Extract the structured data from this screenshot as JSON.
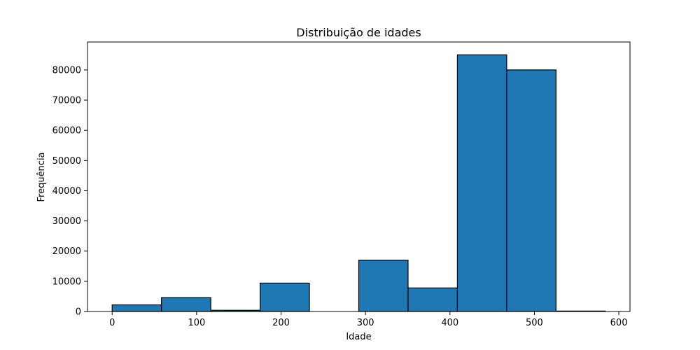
{
  "chart_data": {
    "type": "bar",
    "subtype": "histogram",
    "title": "Distribuição de idades",
    "xlabel": "Idade",
    "ylabel": "Frequência",
    "bin_edges": [
      0,
      58.4,
      116.8,
      175.2,
      233.6,
      292,
      350.4,
      408.8,
      467.2,
      525.6,
      584
    ],
    "values": [
      2200,
      4600,
      400,
      9400,
      0,
      17000,
      7800,
      85000,
      80000,
      150
    ],
    "xlim": [
      -29.2,
      613.2
    ],
    "ylim": [
      0,
      89250
    ],
    "xticks": [
      0,
      100,
      200,
      300,
      400,
      500,
      600
    ],
    "yticks": [
      0,
      10000,
      20000,
      30000,
      40000,
      50000,
      60000,
      70000,
      80000
    ],
    "grid": false,
    "legend": "none",
    "colors": {
      "bar_fill": "#1f77b4",
      "bar_edge": "#000000",
      "axis": "#000000"
    }
  }
}
